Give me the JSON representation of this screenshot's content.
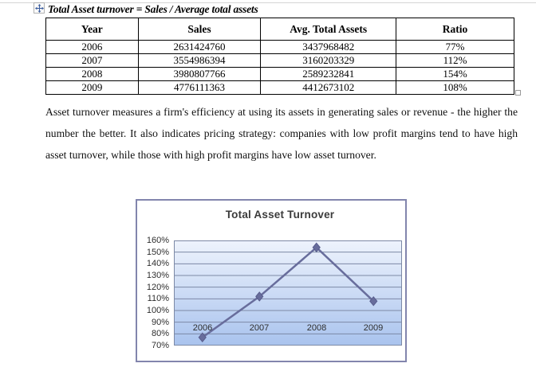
{
  "document": {
    "title": "Total Asset turnover = Sales / Average total assets",
    "paragraph": "Asset turnover measures a firm's efficiency at using its assets in generating sales or revenue - the higher the number the better. It also indicates pricing strategy: companies with low profit margins tend to have high asset turnover, while those with high profit margins have low asset turnover."
  },
  "table": {
    "headers": [
      "Year",
      "Sales",
      "Avg. Total Assets",
      "Ratio"
    ],
    "rows": [
      [
        "2006",
        "2631424760",
        "3437968482",
        "77%"
      ],
      [
        "2007",
        "3554986394",
        "3160203329",
        "112%"
      ],
      [
        "2008",
        "3980807766",
        "2589232841",
        "154%"
      ],
      [
        "2009",
        "4776111363",
        "4412673102",
        "108%"
      ]
    ]
  },
  "icons": {
    "table_move_handle": "four-direction-move-cross",
    "table_resize_handle": "small-gray-square"
  },
  "chart_data": {
    "type": "line",
    "title": "Total Asset Turnover",
    "categories": [
      "2006",
      "2007",
      "2008",
      "2009"
    ],
    "series": [
      {
        "name": "Total Asset Turnover",
        "values": [
          0.77,
          1.12,
          1.54,
          1.08
        ]
      }
    ],
    "ylim": [
      0.7,
      1.6
    ],
    "ytick_step": 0.1,
    "yticks": [
      "160%",
      "150%",
      "140%",
      "130%",
      "120%",
      "110%",
      "100%",
      "90%",
      "80%",
      "70%"
    ],
    "xlabel": "",
    "ylabel": "",
    "grid": true,
    "legend": "none",
    "marker": "diamond",
    "colors": {
      "line": "#686d9c",
      "marker_edge": "#585d8c",
      "plot_top": "#eef3fc",
      "plot_bottom": "#a9c3ee",
      "gridline": "#7c89a6",
      "chart_border": "#8285ad",
      "title": "#3b3b3b"
    }
  }
}
